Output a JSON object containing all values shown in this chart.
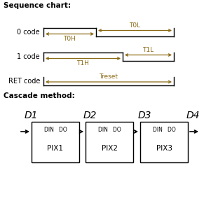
{
  "bg_color": "#ffffff",
  "title_seq": "Sequence chart:",
  "title_cas": "Cascade method:",
  "text_color": "#000000",
  "label_color": "#8B6914",
  "box_color": "#000000",
  "arrow_color": "#000000",
  "pix_boxes": [
    "PIX1",
    "PIX2",
    "PIX3"
  ],
  "d_labels": [
    "D1",
    "D2",
    "D3",
    "D4"
  ],
  "din_do_labels": [
    "DIN   DO",
    "DIN   DO",
    "DIN   DO"
  ],
  "seq_row_labels": [
    "0 code",
    "1 code",
    "RET code"
  ],
  "timing_labels": [
    "T0H",
    "T0L",
    "T1H",
    "T1L",
    "Treset"
  ],
  "fig_w": 3.01,
  "fig_h": 3.0,
  "dpi": 100
}
